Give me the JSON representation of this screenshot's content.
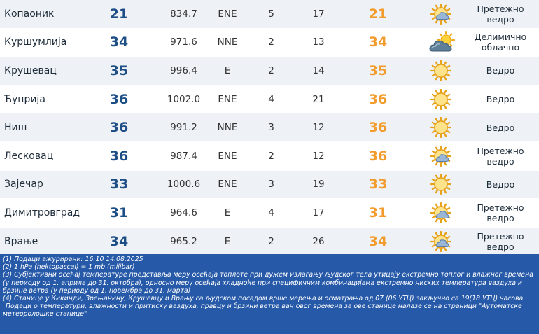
{
  "rows": [
    {
      "station": "Копаоник",
      "temp": "21",
      "pressure": "834.7",
      "wind_dir": "ENE",
      "wind_speed": "5",
      "humidity": "17",
      "feels_like": "21",
      "icon": "partly-cloudy-icon",
      "desc_line1": "Претежно",
      "desc_line2": "ведро"
    },
    {
      "station": "Куршумлија",
      "temp": "34",
      "pressure": "971.6",
      "wind_dir": "NNE",
      "wind_speed": "2",
      "humidity": "13",
      "feels_like": "34",
      "icon": "sun-behind-cloud-icon",
      "desc_line1": "Делимично",
      "desc_line2": "облачно"
    },
    {
      "station": "Крушевац",
      "temp": "35",
      "pressure": "996.4",
      "wind_dir": "E",
      "wind_speed": "2",
      "humidity": "14",
      "feels_like": "35",
      "icon": "sun-icon",
      "desc_line1": "Ведро",
      "desc_line2": ""
    },
    {
      "station": "Ћуприја",
      "temp": "36",
      "pressure": "1002.0",
      "wind_dir": "ENE",
      "wind_speed": "4",
      "humidity": "21",
      "feels_like": "36",
      "icon": "sun-icon",
      "desc_line1": "Ведро",
      "desc_line2": ""
    },
    {
      "station": "Ниш",
      "temp": "36",
      "pressure": "991.2",
      "wind_dir": "NNE",
      "wind_speed": "3",
      "humidity": "12",
      "feels_like": "36",
      "icon": "sun-icon",
      "desc_line1": "Ведро",
      "desc_line2": ""
    },
    {
      "station": "Лесковац",
      "temp": "36",
      "pressure": "987.4",
      "wind_dir": "ENE",
      "wind_speed": "2",
      "humidity": "12",
      "feels_like": "36",
      "icon": "partly-cloudy-icon",
      "desc_line1": "Претежно",
      "desc_line2": "ведро"
    },
    {
      "station": "Зајечар",
      "temp": "33",
      "pressure": "1000.6",
      "wind_dir": "ENE",
      "wind_speed": "3",
      "humidity": "19",
      "feels_like": "33",
      "icon": "sun-icon",
      "desc_line1": "Ведро",
      "desc_line2": ""
    },
    {
      "station": "Димитровград",
      "temp": "31",
      "pressure": "964.6",
      "wind_dir": "E",
      "wind_speed": "4",
      "humidity": "17",
      "feels_like": "31",
      "icon": "partly-cloudy-icon",
      "desc_line1": "Претежно",
      "desc_line2": "ведро"
    },
    {
      "station": "Врање",
      "temp": "34",
      "pressure": "965.2",
      "wind_dir": "E",
      "wind_speed": "2",
      "humidity": "26",
      "feels_like": "34",
      "icon": "partly-cloudy-icon",
      "desc_line1": "Претежно",
      "desc_line2": "ведро"
    }
  ],
  "notes": [
    "(1) Подаци ажурирани:  16:10 14.08.2025",
    "(2) 1 hPa (hektopascal) = 1 mb (milibar)",
    "(3) Субјективни осећај температуре представља меру осећаја топлоте при дужем излагању људског тела утицају екстремно топлог и влажног времена (у периоду од 1. априла до 31. октобра), односно меру осећаја хладноће при специфичним комбинацијама екстремно ниских температура ваздуха и брзине ветра (у периоду од 1. новембра до 31. марта)",
    "(4) Станице у Кикинди, Зрењанину, Крушевцу и Врању са људском посадом врше мерења и осматрања од 07 (06 УТЦ) закључно са 19(18 УТЦ) часова.",
    "Подаци о температури, влажности и притиску ваздуха, правцу и брзини ветра ван овог времена за ове станице налазе се на страници \"Аутоматске метеоролошке станице\""
  ],
  "colors": {
    "temp": "#1d4e86",
    "feels_like": "#f39c2e",
    "row_alt": "#eef2f6",
    "notes_bg": "#2659a8"
  }
}
